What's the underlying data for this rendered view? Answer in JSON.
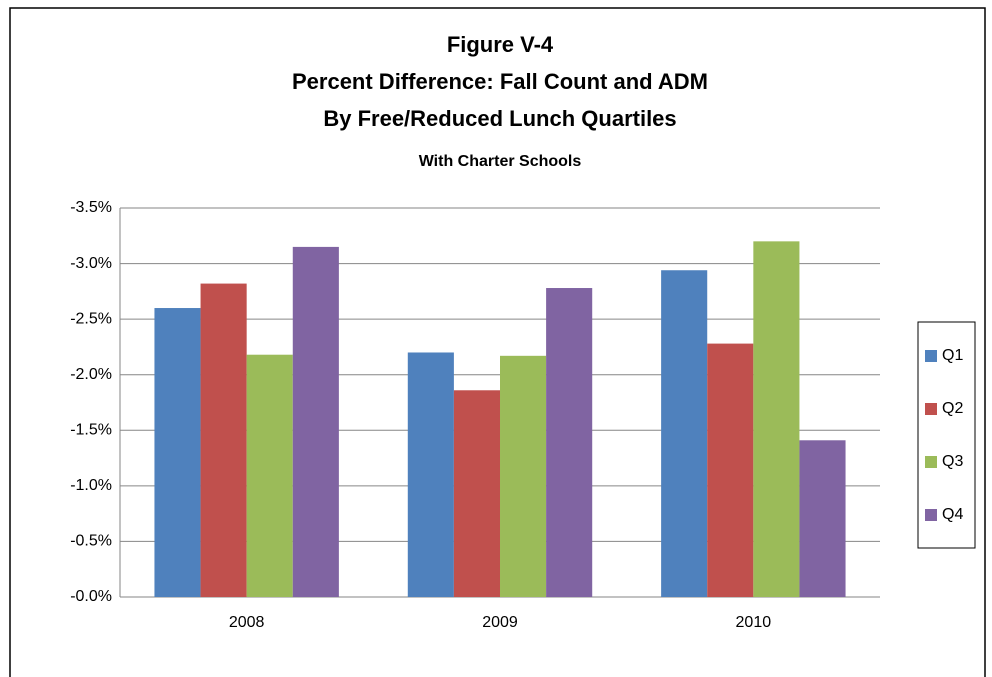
{
  "chart_data": {
    "type": "bar",
    "title": [
      "Figure V-4",
      "Percent Difference: Fall Count and ADM",
      "By Free/Reduced Lunch Quartiles"
    ],
    "subtitle": "With Charter Schools",
    "categories": [
      "2008",
      "2009",
      "2010"
    ],
    "series": [
      {
        "name": "Q1",
        "color": "#4f81bd",
        "values": [
          -2.6,
          -2.2,
          -2.94
        ]
      },
      {
        "name": "Q2",
        "color": "#c0504d",
        "values": [
          -2.82,
          -1.86,
          -2.28
        ]
      },
      {
        "name": "Q3",
        "color": "#9bbb59",
        "values": [
          -2.18,
          -2.17,
          -3.2
        ]
      },
      {
        "name": "Q4",
        "color": "#8064a2",
        "values": [
          -3.15,
          -2.78,
          -1.41
        ]
      }
    ],
    "ylim": [
      0,
      -3.5
    ],
    "yticks": [
      {
        "value": 0,
        "label": "-0.0%"
      },
      {
        "value": -0.5,
        "label": "-0.5%"
      },
      {
        "value": -1,
        "label": "-1.0%"
      },
      {
        "value": -1.5,
        "label": "-1.5%"
      },
      {
        "value": -2,
        "label": "-2.0%"
      },
      {
        "value": -2.5,
        "label": "-2.5%"
      },
      {
        "value": -3,
        "label": "-3.0%"
      },
      {
        "value": -3.5,
        "label": "-3.5%"
      }
    ],
    "grid": true,
    "legend": "right"
  }
}
